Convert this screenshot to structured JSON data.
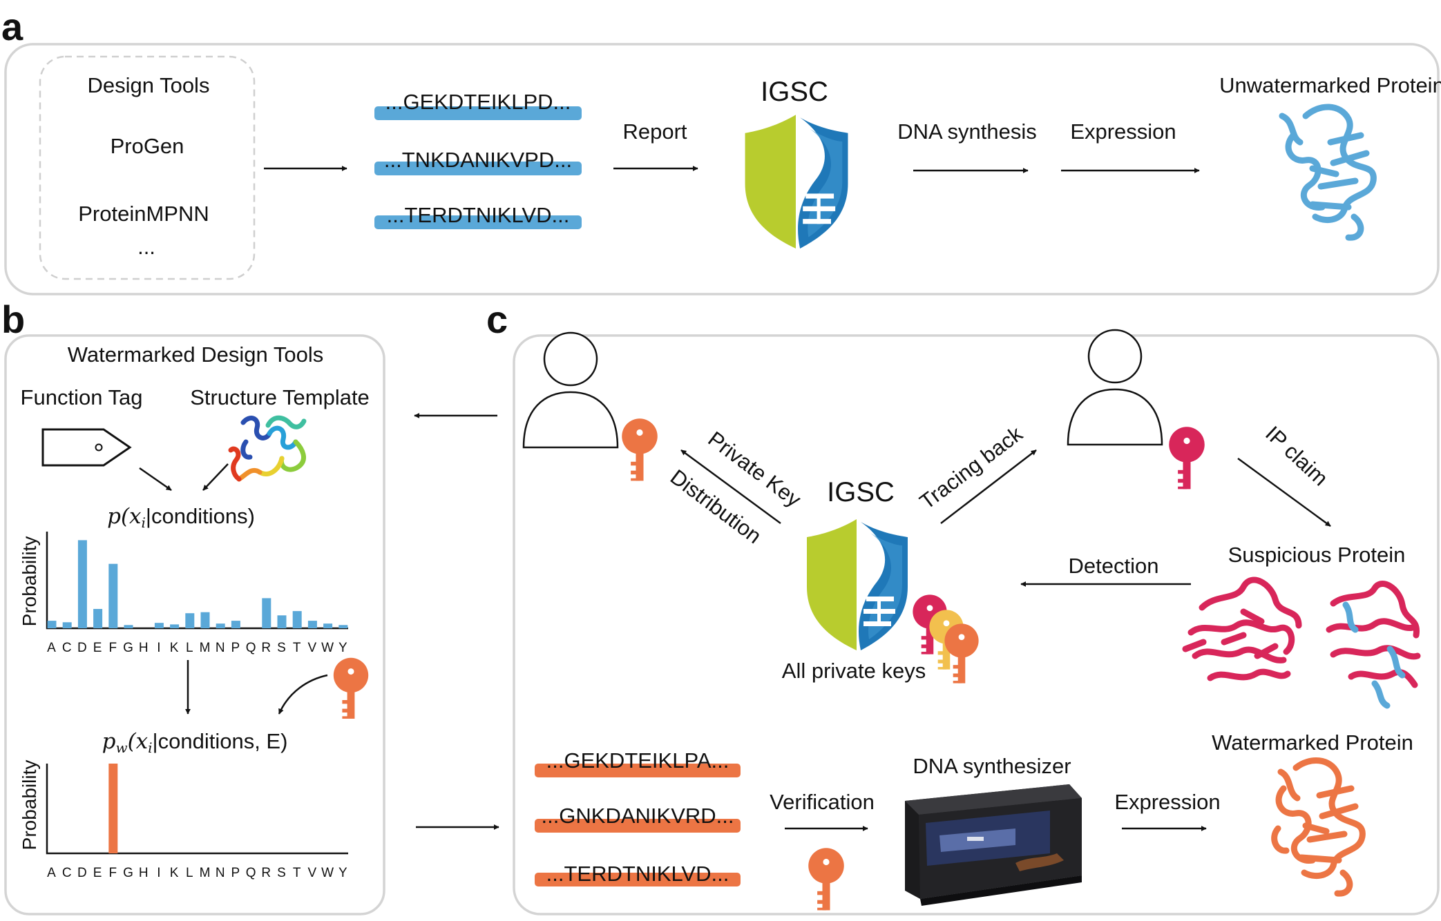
{
  "panels": {
    "a": "a",
    "b": "b",
    "c": "c"
  },
  "panel_a": {
    "design_tools": {
      "title": "Design Tools",
      "items": [
        "ProGen",
        "ProteinMPNN",
        "..."
      ]
    },
    "sequences": [
      "...GEKDTEIKLPD...",
      "...TNKDANIKVPD...",
      "...TERDTNIKLVD..."
    ],
    "report": "Report",
    "igsc": "IGSC",
    "dna_synthesis": "DNA synthesis",
    "expression": "Expression",
    "result": "Unwatermarked Protein"
  },
  "panel_b": {
    "title": "Watermarked Design Tools",
    "function_tag": "Function Tag",
    "structure_template": "Structure Template",
    "formula_top_prefix": "p(x",
    "formula_top_sub": "i",
    "formula_top_suffix": "|conditions)",
    "formula_bottom_prefix": "p",
    "formula_bottom_w": "w",
    "formula_bottom_mid": "(x",
    "formula_bottom_sub": "i",
    "formula_bottom_suffix": "|conditions, E)",
    "ylabel": "Probability"
  },
  "panel_c": {
    "private_key": "Private Key",
    "distribution": "Distribution",
    "tracing_back": "Tracing back",
    "ip_claim": "IP claim",
    "igsc": "IGSC",
    "all_private_keys": "All private keys",
    "detection": "Detection",
    "suspicious_protein": "Suspicious Protein",
    "sequences": [
      "...GEKDTEIKLPA...",
      "...GNKDANIKVRD...",
      "...TERDTNIKLVD..."
    ],
    "verification": "Verification",
    "dna_synthesizer": "DNA synthesizer",
    "expression": "Expression",
    "watermarked_protein": "Watermarked Protein"
  },
  "colors": {
    "blue": "#5aa8d8",
    "orange": "#ec7544",
    "crimson": "#d8265a",
    "lime": "#b8cc2e",
    "shield_blue": "#1f78b8",
    "gold": "#f2c04e"
  },
  "chart_data": [
    {
      "type": "bar",
      "categories": [
        "A",
        "C",
        "D",
        "E",
        "F",
        "G",
        "H",
        "I",
        "K",
        "L",
        "M",
        "N",
        "P",
        "Q",
        "R",
        "S",
        "T",
        "V",
        "W",
        "Y"
      ],
      "values": [
        0.035,
        0.028,
        0.41,
        0.09,
        0.3,
        0.015,
        0.0,
        0.025,
        0.018,
        0.07,
        0.075,
        0.022,
        0.035,
        0.0,
        0.14,
        0.06,
        0.08,
        0.035,
        0.022,
        0.015
      ],
      "title": "",
      "xlabel": "",
      "ylabel": "Probability",
      "ylim": [
        0,
        0.45
      ]
    },
    {
      "type": "bar",
      "categories": [
        "A",
        "C",
        "D",
        "E",
        "F",
        "G",
        "H",
        "I",
        "K",
        "L",
        "M",
        "N",
        "P",
        "Q",
        "R",
        "S",
        "T",
        "V",
        "W",
        "Y"
      ],
      "values": [
        0,
        0,
        0,
        0,
        1.0,
        0,
        0,
        0,
        0,
        0,
        0,
        0,
        0,
        0,
        0,
        0,
        0,
        0,
        0,
        0
      ],
      "title": "",
      "xlabel": "",
      "ylabel": "Probability",
      "ylim": [
        0,
        1.0
      ]
    }
  ]
}
